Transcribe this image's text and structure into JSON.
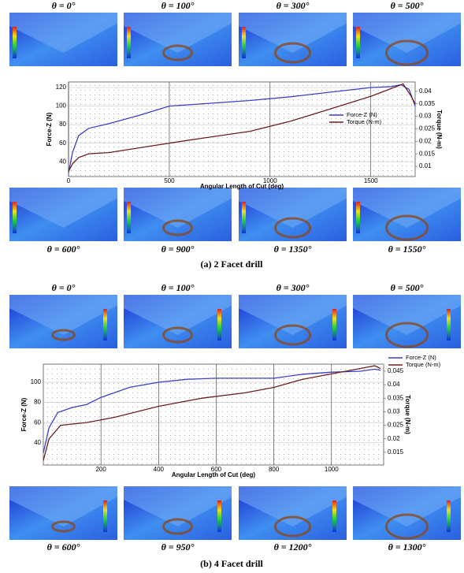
{
  "panels": [
    {
      "top_labels": [
        "θ = 0°",
        "θ = 100°",
        "θ = 300°",
        "θ = 500°"
      ],
      "bottom_labels": [
        "θ = 600°",
        "θ = 900°",
        "θ = 1350°",
        "θ = 1550°"
      ],
      "caption": "(a) 2 Facet drill"
    },
    {
      "top_labels": [
        "θ = 0°",
        "θ = 100°",
        "θ = 300°",
        "θ = 500°"
      ],
      "bottom_labels": [
        "θ = 600°",
        "θ = 950°",
        "θ = 1200°",
        "θ = 1300°"
      ],
      "caption": "(b) 4 Facet drill"
    }
  ],
  "chart_data": [
    {
      "type": "line",
      "x_label": "Angular Length of Cut (deg)",
      "y_label": "Force-Z (N)",
      "y2_label": "Torque (N-m)",
      "xlim": [
        0,
        1720
      ],
      "xticks": [
        0,
        500,
        1000,
        1500
      ],
      "ylim": [
        24,
        126
      ],
      "yticks": [
        40,
        60,
        80,
        100,
        120
      ],
      "y2lim": [
        0.0059,
        0.04375
      ],
      "y2ticks": [
        0.01,
        0.015,
        0.02,
        0.025,
        0.03,
        0.035,
        0.04
      ],
      "grid": true,
      "legend": "inside",
      "series": [
        {
          "name": "Force-Z (N)",
          "color": "#3b3fc8",
          "x": [
            0,
            20,
            50,
            100,
            200,
            350,
            500,
            700,
            900,
            1100,
            1300,
            1500,
            1600,
            1650,
            1690,
            1720
          ],
          "values": [
            28,
            50,
            68,
            76,
            81,
            90,
            100,
            103,
            106,
            110,
            115,
            120,
            121,
            123,
            118,
            100
          ]
        },
        {
          "name": "Torque (N-m)",
          "color": "#6b1f1f",
          "axis": "y2",
          "x": [
            0,
            20,
            50,
            100,
            200,
            400,
            600,
            900,
            1100,
            1300,
            1500,
            1630,
            1660,
            1700,
            1720
          ],
          "values": [
            0.008,
            0.011,
            0.0135,
            0.015,
            0.0155,
            0.018,
            0.0205,
            0.024,
            0.028,
            0.033,
            0.038,
            0.042,
            0.043,
            0.038,
            0.035
          ]
        }
      ]
    },
    {
      "type": "line",
      "x_label": "Angular Length of Cut (deg)",
      "y_label": "Force-Z (N)",
      "y2_label": "Torque (N-m)",
      "xlim": [
        0,
        1181
      ],
      "xticks": [
        200,
        400,
        600,
        800,
        1000
      ],
      "ylim": [
        18,
        118
      ],
      "yticks": [
        40,
        60,
        80,
        100
      ],
      "y2lim": [
        0.0103,
        0.0476
      ],
      "y2ticks": [
        0.015,
        0.02,
        0.025,
        0.03,
        0.035,
        0.04,
        0.045
      ],
      "grid": true,
      "legend": "outside",
      "series": [
        {
          "name": "Force-Z (N)",
          "color": "#3b3fc8",
          "x": [
            0,
            20,
            50,
            100,
            150,
            200,
            300,
            400,
            500,
            600,
            700,
            800,
            900,
            1000,
            1100,
            1150,
            1170
          ],
          "values": [
            30,
            55,
            70,
            75,
            78,
            85,
            95,
            100,
            103,
            104,
            104,
            104,
            108,
            110,
            111,
            113,
            112
          ]
        },
        {
          "name": "Torque (N-m)",
          "color": "#6b1f1f",
          "axis": "y2",
          "x": [
            0,
            20,
            60,
            150,
            250,
            400,
            550,
            700,
            800,
            900,
            1000,
            1100,
            1150,
            1170
          ],
          "values": [
            0.012,
            0.02,
            0.025,
            0.026,
            0.028,
            0.032,
            0.035,
            0.037,
            0.039,
            0.042,
            0.044,
            0.046,
            0.047,
            0.046
          ]
        }
      ]
    }
  ]
}
